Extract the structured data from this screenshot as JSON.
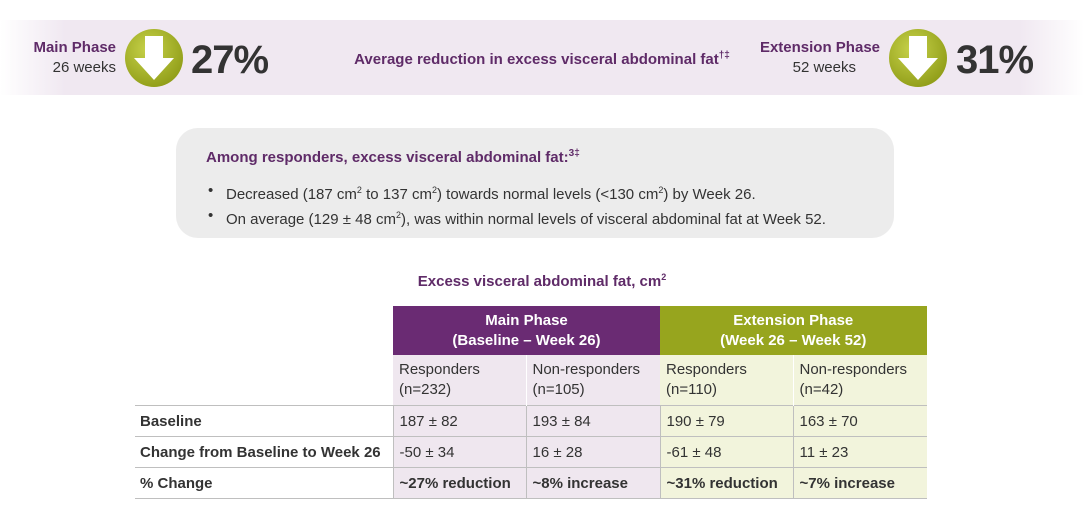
{
  "banner": {
    "main_phase": {
      "title": "Main Phase",
      "duration": "26 weeks",
      "percent": "27%",
      "icon": "down-arrow-icon"
    },
    "center_text": "Average reduction in excess visceral abdominal fat",
    "center_sup": "†‡",
    "extension_phase": {
      "title": "Extension Phase",
      "duration": "52 weeks",
      "percent": "31%",
      "icon": "down-arrow-icon"
    }
  },
  "info_box": {
    "title": "Among responders, excess visceral abdominal fat:",
    "title_sup": "3‡",
    "bullets": [
      {
        "pre": "Decreased (187 cm",
        "s1": "2",
        "mid1": " to 137 cm",
        "s2": "2",
        "mid2": ") towards normal levels (<130 cm",
        "s3": "2",
        "post": ") by Week 26."
      },
      {
        "pre": "On average (129 ± 48 cm",
        "s1": "2",
        "post": "), was within normal levels of visceral abdominal fat at Week 52."
      }
    ]
  },
  "table": {
    "title": "Excess visceral abdominal fat, cm",
    "title_sup": "2",
    "main_head": {
      "line1": "Main Phase",
      "line2": "(Baseline – Week 26)"
    },
    "ext_head": {
      "line1": "Extension Phase",
      "line2": "(Week 26 – Week 52)"
    },
    "subheads": [
      {
        "label": "Responders",
        "n": "(n=232)"
      },
      {
        "label": "Non-responders",
        "n": "(n=105)"
      },
      {
        "label": "Responders",
        "n": "(n=110)"
      },
      {
        "label": "Non-responders",
        "n": "(n=42)"
      }
    ],
    "rows": [
      {
        "label": "Baseline",
        "values": [
          "187 ± 82",
          "193 ± 84",
          "190 ± 79",
          "163 ± 70"
        ]
      },
      {
        "label": "Change from Baseline to Week 26",
        "values": [
          "-50 ± 34",
          "16 ± 28",
          "-61 ± 48",
          "11 ± 23"
        ]
      },
      {
        "label": "% Change",
        "values": [
          "~27% reduction",
          "~8% increase",
          "~31% reduction",
          "~7% increase"
        ]
      }
    ]
  },
  "colors": {
    "purple": "#6a2b73",
    "purple_text": "#5f2b68",
    "olive": "#97a51e",
    "lavender": "#efe7ef",
    "lime_light": "#f2f4dc",
    "banner_bg": "#f0e8f1",
    "box_bg": "#ececec"
  }
}
